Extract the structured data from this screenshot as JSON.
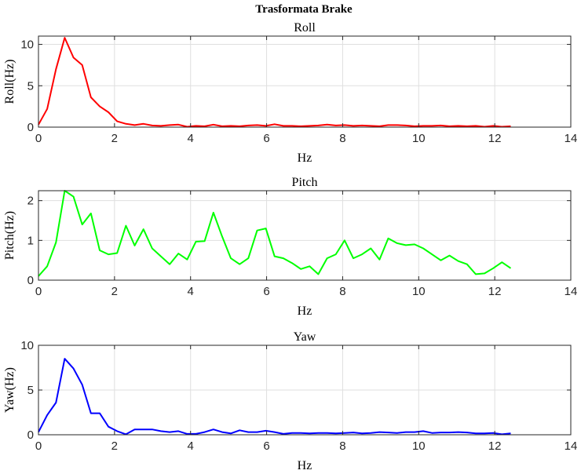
{
  "figure_title": "Trasformata Brake",
  "chart_data": [
    {
      "type": "line",
      "title": "Roll",
      "xlabel": "Hz",
      "ylabel": "Roll(Hz)",
      "xlim": [
        0,
        14
      ],
      "ylim": [
        0,
        11
      ],
      "xticks": [
        0,
        2,
        4,
        6,
        8,
        10,
        12,
        14
      ],
      "yticks": [
        0,
        5,
        10
      ],
      "grid": true,
      "color": "#ff0000",
      "series": [
        {
          "x": [
            0,
            0.23,
            0.46,
            0.69,
            0.92,
            1.15,
            1.38,
            1.61,
            1.84,
            2.07,
            2.3,
            2.53,
            2.76,
            2.99,
            3.22,
            3.45,
            3.68,
            3.91,
            4.14,
            4.37,
            4.6,
            4.83,
            5.06,
            5.29,
            5.52,
            5.75,
            5.98,
            6.21,
            6.44,
            6.67,
            6.9,
            7.13,
            7.36,
            7.59,
            7.82,
            8.05,
            8.28,
            8.51,
            8.74,
            8.97,
            9.2,
            9.43,
            9.66,
            9.89,
            10.12,
            10.35,
            10.58,
            10.81,
            11.04,
            11.27,
            11.5,
            11.73,
            11.96,
            12.19,
            12.42
          ],
          "y": [
            0.3,
            2.2,
            7.0,
            10.8,
            8.4,
            7.5,
            3.6,
            2.5,
            1.8,
            0.7,
            0.4,
            0.25,
            0.4,
            0.2,
            0.15,
            0.25,
            0.3,
            0.05,
            0.15,
            0.1,
            0.3,
            0.1,
            0.15,
            0.1,
            0.2,
            0.25,
            0.15,
            0.35,
            0.15,
            0.15,
            0.1,
            0.15,
            0.2,
            0.3,
            0.2,
            0.25,
            0.15,
            0.2,
            0.15,
            0.1,
            0.25,
            0.25,
            0.2,
            0.1,
            0.15,
            0.15,
            0.2,
            0.1,
            0.15,
            0.1,
            0.15,
            0.05,
            0.15,
            0.05,
            0.1
          ]
        }
      ]
    },
    {
      "type": "line",
      "title": "Pitch",
      "xlabel": "Hz",
      "ylabel": "Pitch(Hz)",
      "xlim": [
        0,
        14
      ],
      "ylim": [
        0,
        2.25
      ],
      "xticks": [
        0,
        2,
        4,
        6,
        8,
        10,
        12,
        14
      ],
      "yticks": [
        0,
        1,
        2
      ],
      "grid": true,
      "color": "#00ff00",
      "series": [
        {
          "x": [
            0,
            0.23,
            0.46,
            0.69,
            0.92,
            1.15,
            1.38,
            1.61,
            1.84,
            2.07,
            2.3,
            2.53,
            2.76,
            2.99,
            3.22,
            3.45,
            3.68,
            3.91,
            4.14,
            4.37,
            4.6,
            4.83,
            5.06,
            5.29,
            5.52,
            5.75,
            5.98,
            6.21,
            6.44,
            6.67,
            6.9,
            7.13,
            7.36,
            7.59,
            7.82,
            8.05,
            8.28,
            8.51,
            8.74,
            8.97,
            9.2,
            9.43,
            9.66,
            9.89,
            10.12,
            10.35,
            10.58,
            10.81,
            11.04,
            11.27,
            11.5,
            11.73,
            11.96,
            12.19,
            12.42
          ],
          "y": [
            0.1,
            0.35,
            0.95,
            2.25,
            2.1,
            1.4,
            1.68,
            0.75,
            0.65,
            0.68,
            1.37,
            0.87,
            1.28,
            0.8,
            0.6,
            0.4,
            0.67,
            0.52,
            0.97,
            0.98,
            1.7,
            1.1,
            0.55,
            0.4,
            0.55,
            1.25,
            1.3,
            0.6,
            0.55,
            0.43,
            0.28,
            0.35,
            0.15,
            0.55,
            0.65,
            1.0,
            0.55,
            0.65,
            0.8,
            0.52,
            1.05,
            0.93,
            0.88,
            0.9,
            0.8,
            0.65,
            0.5,
            0.62,
            0.48,
            0.4,
            0.15,
            0.17,
            0.3,
            0.45,
            0.3
          ]
        }
      ]
    },
    {
      "type": "line",
      "title": "Yaw",
      "xlabel": "Hz",
      "ylabel": "Yaw(Hz)",
      "xlim": [
        0,
        14
      ],
      "ylim": [
        0,
        10
      ],
      "xticks": [
        0,
        2,
        4,
        6,
        8,
        10,
        12,
        14
      ],
      "yticks": [
        0,
        5,
        10
      ],
      "grid": true,
      "color": "#0000ff",
      "series": [
        {
          "x": [
            0,
            0.23,
            0.46,
            0.69,
            0.92,
            1.15,
            1.38,
            1.61,
            1.84,
            2.07,
            2.3,
            2.53,
            2.76,
            2.99,
            3.22,
            3.45,
            3.68,
            3.91,
            4.14,
            4.37,
            4.6,
            4.83,
            5.06,
            5.29,
            5.52,
            5.75,
            5.98,
            6.21,
            6.44,
            6.67,
            6.9,
            7.13,
            7.36,
            7.59,
            7.82,
            8.05,
            8.28,
            8.51,
            8.74,
            8.97,
            9.2,
            9.43,
            9.66,
            9.89,
            10.12,
            10.35,
            10.58,
            10.81,
            11.04,
            11.27,
            11.5,
            11.73,
            11.96,
            12.19,
            12.42
          ],
          "y": [
            0.3,
            2.2,
            3.6,
            8.5,
            7.4,
            5.6,
            2.4,
            2.4,
            0.9,
            0.4,
            0.05,
            0.6,
            0.6,
            0.6,
            0.4,
            0.3,
            0.4,
            0.1,
            0.1,
            0.3,
            0.6,
            0.3,
            0.15,
            0.5,
            0.3,
            0.3,
            0.45,
            0.3,
            0.1,
            0.2,
            0.2,
            0.15,
            0.2,
            0.2,
            0.15,
            0.2,
            0.25,
            0.15,
            0.2,
            0.3,
            0.25,
            0.2,
            0.3,
            0.3,
            0.4,
            0.2,
            0.25,
            0.25,
            0.3,
            0.25,
            0.15,
            0.15,
            0.2,
            0.05,
            0.15
          ]
        }
      ]
    }
  ]
}
